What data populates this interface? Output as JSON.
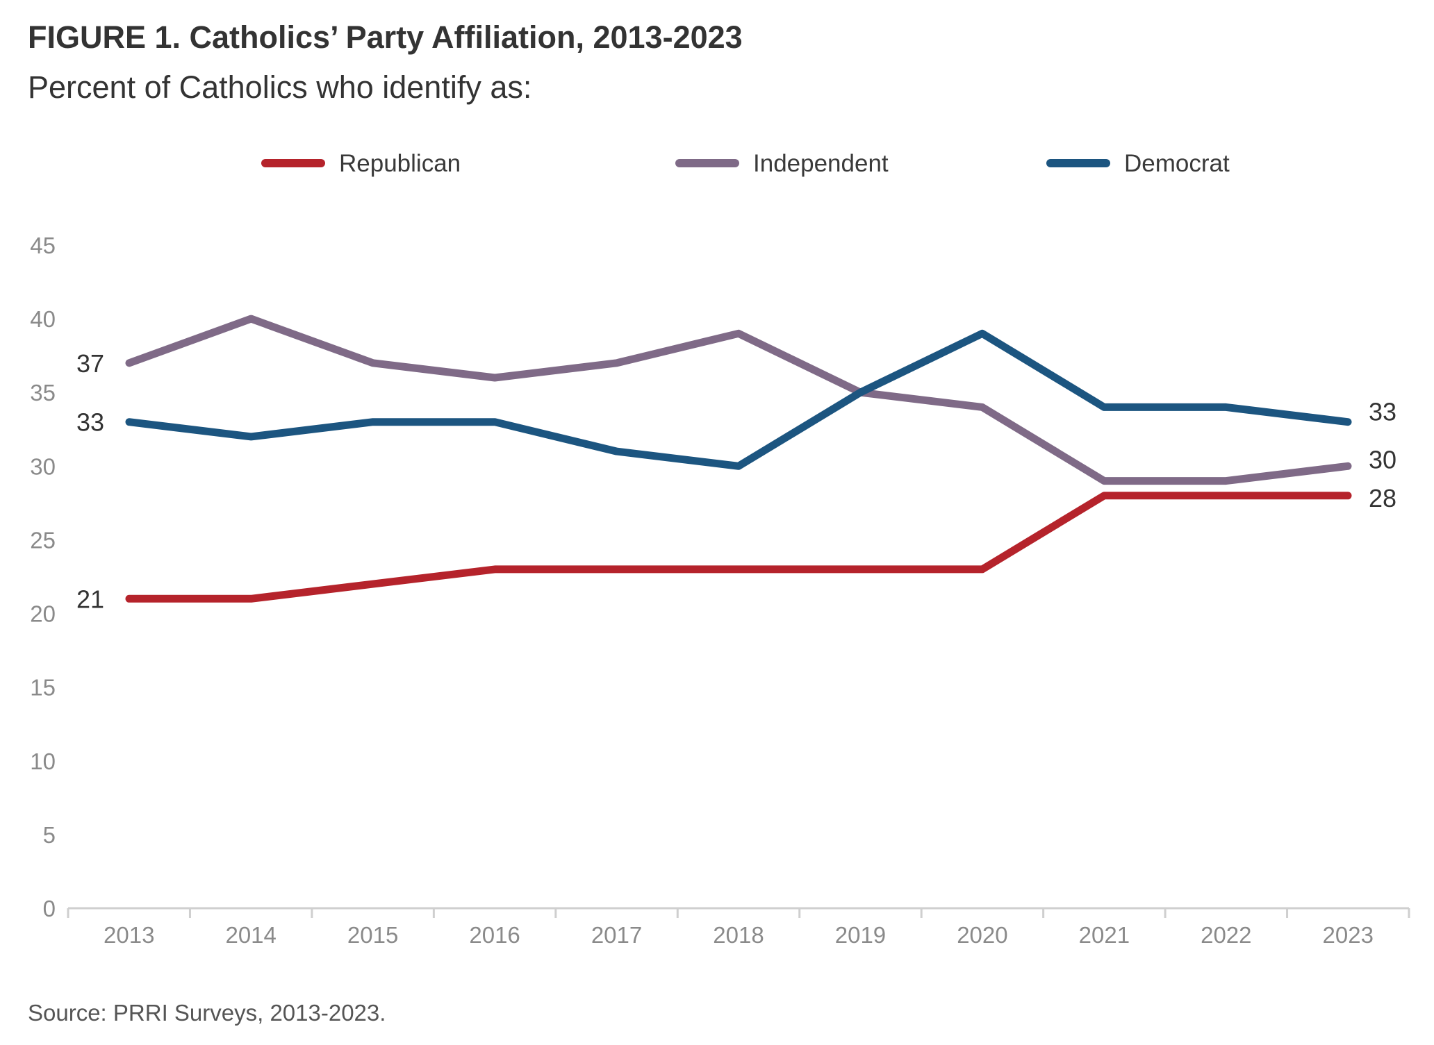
{
  "title": "FIGURE 1.  Catholics’ Party Affiliation, 2013-2023",
  "subtitle": "Percent of Catholics who identify as:",
  "source": "Source: PRRI Surveys, 2013-2023.",
  "chart_data": {
    "type": "line",
    "x": [
      "2013",
      "2014",
      "2015",
      "2016",
      "2017",
      "2018",
      "2019",
      "2020",
      "2021",
      "2022",
      "2023"
    ],
    "ylim": [
      0,
      45
    ],
    "yticks": [
      "0",
      "5",
      "10",
      "15",
      "20",
      "25",
      "30",
      "35",
      "40",
      "45"
    ],
    "grid": false,
    "legend_position": "top",
    "series": [
      {
        "name": "Republican",
        "color": "#b5232b",
        "values": [
          21,
          21,
          22,
          23,
          23,
          23,
          23,
          23,
          28,
          28,
          28
        ],
        "start_label": "21",
        "end_label": "28"
      },
      {
        "name": "Independent",
        "color": "#7f6a87",
        "values": [
          37,
          40,
          37,
          36,
          37,
          39,
          35,
          34,
          29,
          29,
          30
        ],
        "start_label": "37",
        "end_label": "30"
      },
      {
        "name": "Democrat",
        "color": "#1c5580",
        "values": [
          33,
          32,
          33,
          33,
          31,
          30,
          35,
          39,
          34,
          34,
          33
        ],
        "start_label": "33",
        "end_label": "33"
      }
    ]
  }
}
